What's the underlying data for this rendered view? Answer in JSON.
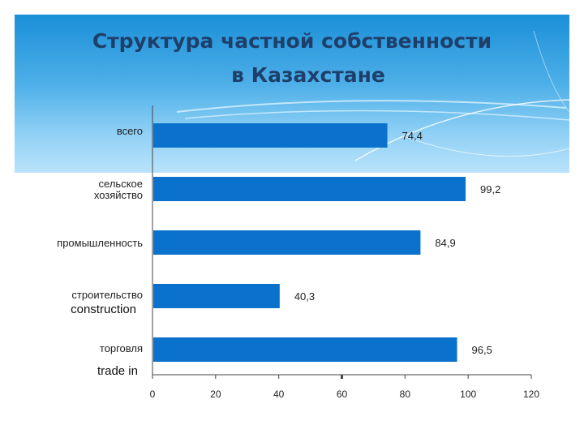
{
  "title": {
    "line1": "Структура частной собственности",
    "line2": "в Казахстане"
  },
  "colors": {
    "bar": "#0a72cc",
    "banner_top": "#1a8fd8",
    "banner_bottom": "#b9e3fb",
    "title": "#1f3f6b"
  },
  "chart_data": {
    "type": "bar",
    "orientation": "horizontal",
    "title": "Структура частной собственности в Казахстане",
    "categories": [
      {
        "label": [
          "всего"
        ],
        "en": ""
      },
      {
        "label": [
          "сельское",
          "хозяйство"
        ],
        "en": ""
      },
      {
        "label": [
          "промышленность"
        ],
        "en": ""
      },
      {
        "label": [
          "строительство"
        ],
        "en": "construction"
      },
      {
        "label": [
          "торговля"
        ],
        "en": "trade in"
      }
    ],
    "values": [
      74.4,
      99.2,
      84.9,
      40.3,
      96.5
    ],
    "value_labels": [
      "74,4",
      "99,2",
      "84,9",
      "40,3",
      "96,5"
    ],
    "xlim": [
      0,
      120
    ],
    "xticks": [
      "0",
      "20",
      "40",
      "60",
      "80",
      "100",
      "120"
    ],
    "xlabel": "",
    "ylabel": "",
    "grid": false,
    "legend": "none"
  }
}
